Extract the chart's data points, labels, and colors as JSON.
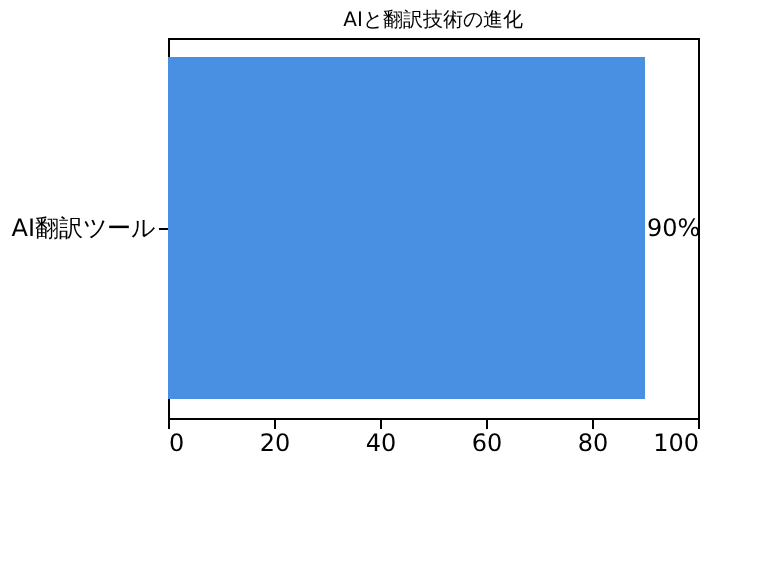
{
  "chart_data": {
    "type": "bar",
    "orientation": "horizontal",
    "title": "AIと翻訳技術の進化",
    "categories": [
      "AI翻訳ツール"
    ],
    "values": [
      90
    ],
    "color": "#4a90e2",
    "value_labels": [
      "90%"
    ],
    "xlim": [
      0,
      100
    ],
    "xticks": [
      0,
      20,
      40,
      60,
      80,
      100
    ],
    "grid": false
  }
}
